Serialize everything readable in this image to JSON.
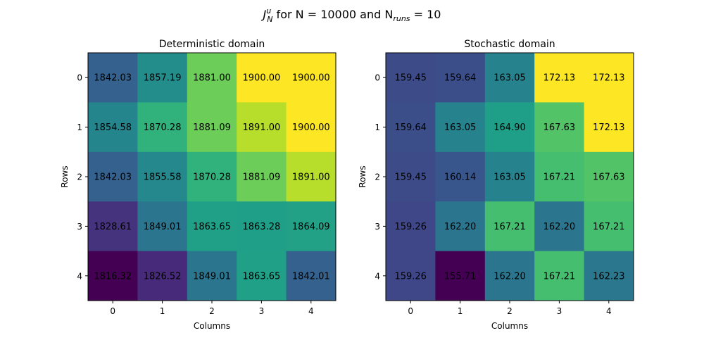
{
  "figure": {
    "suptitle": {
      "main": "J",
      "sup": "u",
      "sub": "N",
      "middle": " for N = 10000 and N",
      "sub2": "runs",
      "end": " = 10"
    }
  },
  "chart_data": [
    {
      "type": "heatmap",
      "title": "Deterministic domain",
      "xlabel": "Columns",
      "ylabel": "Rows",
      "x_ticks": [
        "0",
        "1",
        "2",
        "3",
        "4"
      ],
      "y_ticks": [
        "0",
        "1",
        "2",
        "3",
        "4"
      ],
      "colormap": "viridis",
      "vmin": 1816.32,
      "vmax": 1900.0,
      "values": [
        [
          1842.03,
          1857.19,
          1881.0,
          1900.0,
          1900.0
        ],
        [
          1854.58,
          1870.28,
          1881.09,
          1891.0,
          1900.0
        ],
        [
          1842.03,
          1855.58,
          1870.28,
          1881.09,
          1891.0
        ],
        [
          1828.61,
          1849.01,
          1863.65,
          1863.28,
          1864.09
        ],
        [
          1816.32,
          1826.52,
          1849.01,
          1863.65,
          1842.01
        ]
      ],
      "cell_labels": [
        [
          "1842.03",
          "1857.19",
          "1881.00",
          "1900.00",
          "1900.00"
        ],
        [
          "1854.58",
          "1870.28",
          "1881.09",
          "1891.00",
          "1900.00"
        ],
        [
          "1842.03",
          "1855.58",
          "1870.28",
          "1881.09",
          "1891.00"
        ],
        [
          "1828.61",
          "1849.01",
          "1863.65",
          "1863.28",
          "1864.09"
        ],
        [
          "1816.32",
          "1826.52",
          "1849.01",
          "1863.65",
          "1842.01"
        ]
      ]
    },
    {
      "type": "heatmap",
      "title": "Stochastic domain",
      "xlabel": "Columns",
      "ylabel": "Rows",
      "x_ticks": [
        "0",
        "1",
        "2",
        "3",
        "4"
      ],
      "y_ticks": [
        "0",
        "1",
        "2",
        "3",
        "4"
      ],
      "colormap": "viridis",
      "vmin": 155.71,
      "vmax": 172.13,
      "values": [
        [
          159.45,
          159.64,
          163.05,
          172.13,
          172.13
        ],
        [
          159.64,
          163.05,
          164.9,
          167.63,
          172.13
        ],
        [
          159.45,
          160.14,
          163.05,
          167.21,
          167.63
        ],
        [
          159.26,
          162.2,
          167.21,
          162.2,
          167.21
        ],
        [
          159.26,
          155.71,
          162.2,
          167.21,
          162.23
        ]
      ],
      "cell_labels": [
        [
          "159.45",
          "159.64",
          "163.05",
          "172.13",
          "172.13"
        ],
        [
          "159.64",
          "163.05",
          "164.90",
          "167.63",
          "172.13"
        ],
        [
          "159.45",
          "160.14",
          "163.05",
          "167.21",
          "167.63"
        ],
        [
          "159.26",
          "162.20",
          "167.21",
          "162.20",
          "167.21"
        ],
        [
          "159.26",
          "155.71",
          "162.20",
          "167.21",
          "162.23"
        ]
      ]
    }
  ]
}
